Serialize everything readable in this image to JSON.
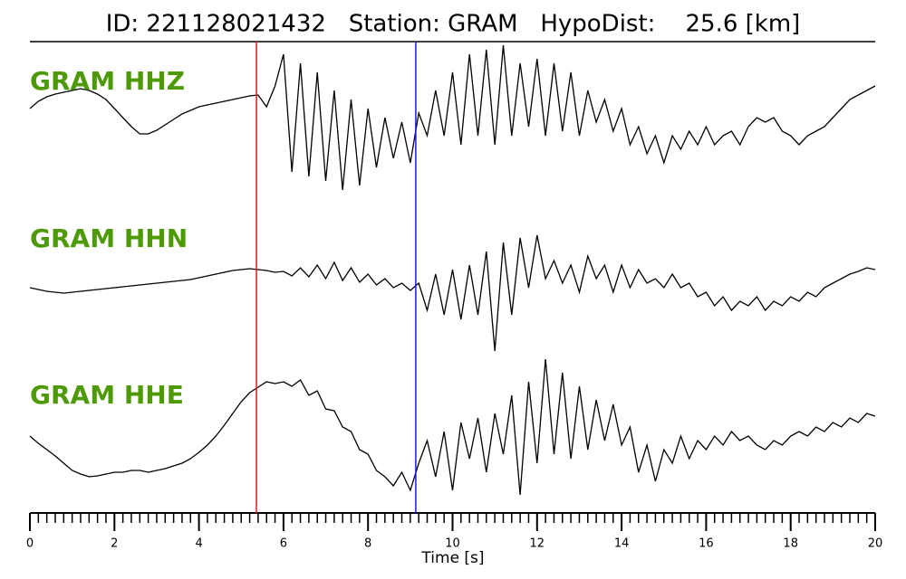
{
  "chart_data": {
    "type": "seismogram",
    "title": "ID: 221128021432   Station: GRAM   HypoDist:    25.6 [km]",
    "xlabel": "Time [s]",
    "xlim": [
      0,
      20
    ],
    "xticks": [
      0,
      2,
      4,
      6,
      8,
      10,
      12,
      14,
      16,
      18,
      20
    ],
    "xminorticks": [
      0,
      0.2,
      0.4,
      0.6,
      0.8,
      1,
      1.2,
      1.4,
      1.6,
      1.8,
      2,
      2.2,
      2.4,
      2.6,
      2.8,
      3,
      3.2,
      3.4,
      3.6,
      3.8,
      4,
      4.2,
      4.4,
      4.6,
      4.8,
      5,
      5.2,
      5.4,
      5.6,
      5.8,
      6,
      6.2,
      6.4,
      6.6,
      6.8,
      7,
      7.2,
      7.4,
      7.6,
      7.8,
      8,
      8.2,
      8.4,
      8.6,
      8.8,
      9,
      9.2,
      9.4,
      9.6,
      9.8,
      10,
      10.2,
      10.4,
      10.6,
      10.8,
      11,
      11.2,
      11.4,
      11.6,
      11.8,
      12,
      12.2,
      12.4,
      12.6,
      12.8,
      13,
      13.2,
      13.4,
      13.6,
      13.8,
      14,
      14.2,
      14.4,
      14.6,
      14.8,
      15,
      15.2,
      15.4,
      15.6,
      15.8,
      16,
      16.2,
      16.4,
      16.6,
      16.8,
      17,
      17.2,
      17.4,
      17.6,
      17.8,
      18,
      18.2,
      18.4,
      18.6,
      18.8,
      19,
      19.2,
      19.4,
      19.6,
      19.8,
      20
    ],
    "x": [
      0,
      0.2,
      0.4,
      0.6,
      0.8,
      1,
      1.2,
      1.4,
      1.6,
      1.8,
      2,
      2.2,
      2.4,
      2.6,
      2.8,
      3,
      3.2,
      3.4,
      3.6,
      3.8,
      4,
      4.2,
      4.4,
      4.6,
      4.8,
      5,
      5.2,
      5.4,
      5.6,
      5.8,
      6,
      6.2,
      6.4,
      6.6,
      6.8,
      7,
      7.2,
      7.4,
      7.6,
      7.8,
      8,
      8.2,
      8.4,
      8.6,
      8.8,
      9,
      9.2,
      9.4,
      9.6,
      9.8,
      10,
      10.2,
      10.4,
      10.6,
      10.8,
      11,
      11.2,
      11.4,
      11.6,
      11.8,
      12,
      12.2,
      12.4,
      12.6,
      12.8,
      13,
      13.2,
      13.4,
      13.6,
      13.8,
      14,
      14.2,
      14.4,
      14.6,
      14.8,
      15,
      15.2,
      15.4,
      15.6,
      15.8,
      16,
      16.2,
      16.4,
      16.6,
      16.8,
      17,
      17.2,
      17.4,
      17.6,
      17.8,
      18,
      18.2,
      18.4,
      18.6,
      18.8,
      19,
      19.2,
      19.4,
      19.6,
      19.8,
      20
    ],
    "picks": [
      {
        "time": 5.36,
        "color": "#e8191c"
      },
      {
        "time": 9.13,
        "color": "#1a1adb"
      }
    ],
    "series": [
      {
        "name": "GRAM HHZ",
        "color": "#000000",
        "values": [
          13,
          21,
          26,
          29,
          31,
          33,
          35,
          33,
          29,
          23,
          13,
          3,
          -7,
          -15,
          -15,
          -11,
          -5,
          1,
          7,
          11,
          15,
          17,
          19,
          21,
          23,
          25,
          27,
          28,
          15,
          38,
          73,
          -57,
          63,
          -62,
          53,
          -67,
          33,
          -77,
          23,
          -72,
          13,
          -52,
          3,
          -42,
          -2,
          -47,
          8,
          -17,
          33,
          -17,
          53,
          -27,
          73,
          -17,
          78,
          -27,
          83,
          -17,
          63,
          -7,
          68,
          -17,
          63,
          -12,
          53,
          -17,
          33,
          -2,
          23,
          -12,
          13,
          -27,
          -7,
          -37,
          -17,
          -47,
          -17,
          -32,
          -12,
          -27,
          -7,
          -27,
          -17,
          -12,
          -27,
          -7,
          3,
          -2,
          3,
          -12,
          -17,
          -27,
          -17,
          -12,
          -7,
          3,
          13,
          23,
          28,
          33,
          38
        ]
      },
      {
        "name": "GRAM HHN",
        "color": "#000000",
        "values": [
          0,
          -2,
          -4,
          -5,
          -6,
          -5,
          -4,
          -3,
          -2,
          -1,
          0,
          1,
          2,
          3,
          4,
          5,
          6,
          7,
          8,
          9,
          11,
          13,
          15,
          17,
          19,
          20,
          21,
          20,
          19,
          17,
          18,
          13,
          22,
          12,
          25,
          10,
          28,
          8,
          22,
          6,
          15,
          3,
          10,
          0,
          5,
          -3,
          5,
          -25,
          15,
          -30,
          20,
          -35,
          25,
          -30,
          40,
          -70,
          50,
          -30,
          55,
          0,
          58,
          10,
          30,
          5,
          25,
          -5,
          35,
          10,
          25,
          -5,
          25,
          0,
          20,
          5,
          10,
          0,
          15,
          0,
          5,
          -10,
          -5,
          -20,
          -10,
          -25,
          -15,
          -20,
          -10,
          -25,
          -15,
          -20,
          -10,
          -15,
          -5,
          -10,
          0,
          5,
          10,
          15,
          18,
          22,
          20
        ]
      },
      {
        "name": "GRAM HHE",
        "color": "#000000",
        "values": [
          0,
          -8,
          -15,
          -22,
          -30,
          -38,
          -42,
          -45,
          -44,
          -42,
          -40,
          -40,
          -38,
          -38,
          -40,
          -38,
          -36,
          -33,
          -30,
          -25,
          -18,
          -10,
          0,
          12,
          25,
          38,
          48,
          54,
          60,
          58,
          60,
          55,
          62,
          45,
          50,
          30,
          28,
          10,
          5,
          -15,
          -20,
          -38,
          -45,
          -55,
          -40,
          -60,
          -30,
          -5,
          -45,
          5,
          -60,
          15,
          -25,
          20,
          -40,
          25,
          -20,
          45,
          -65,
          60,
          -30,
          85,
          -20,
          70,
          -25,
          55,
          -15,
          40,
          -5,
          35,
          -10,
          10,
          -40,
          -10,
          -50,
          -15,
          -30,
          0,
          -25,
          -5,
          -15,
          0,
          -10,
          5,
          -5,
          0,
          -10,
          -15,
          -5,
          -10,
          0,
          5,
          0,
          10,
          5,
          15,
          10,
          20,
          15,
          25,
          22
        ]
      }
    ]
  }
}
